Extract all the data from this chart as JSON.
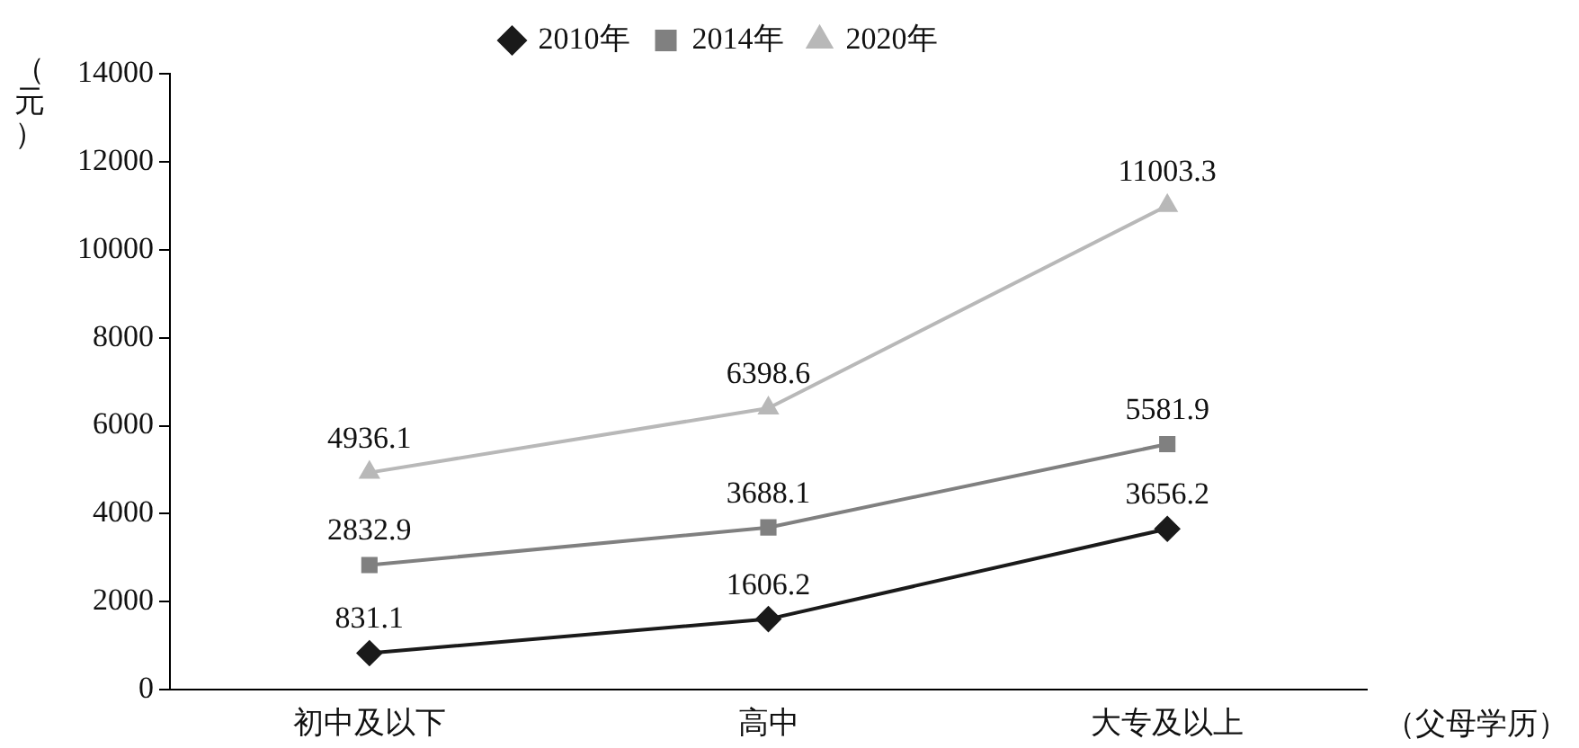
{
  "chart_data": {
    "type": "line",
    "ylabel": "（元）",
    "xlabel": "（父母学历）",
    "categories": [
      "初中及以下",
      "高中",
      "大专及以上"
    ],
    "series": [
      {
        "name": "2010年",
        "color": "#1a1a1a",
        "marker": "diamond",
        "values": [
          831.1,
          1606.2,
          3656.2
        ]
      },
      {
        "name": "2014年",
        "color": "#808080",
        "marker": "square",
        "values": [
          2832.9,
          3688.1,
          5581.9
        ]
      },
      {
        "name": "2020年",
        "color": "#b8b8b8",
        "marker": "triangle",
        "values": [
          4936.1,
          6398.6,
          11003.3
        ]
      }
    ],
    "ylim": [
      0,
      14000
    ],
    "yticks": [
      0,
      2000,
      4000,
      6000,
      8000,
      10000,
      12000,
      14000
    ],
    "grid": false,
    "legend": "top",
    "data_labels": true
  }
}
